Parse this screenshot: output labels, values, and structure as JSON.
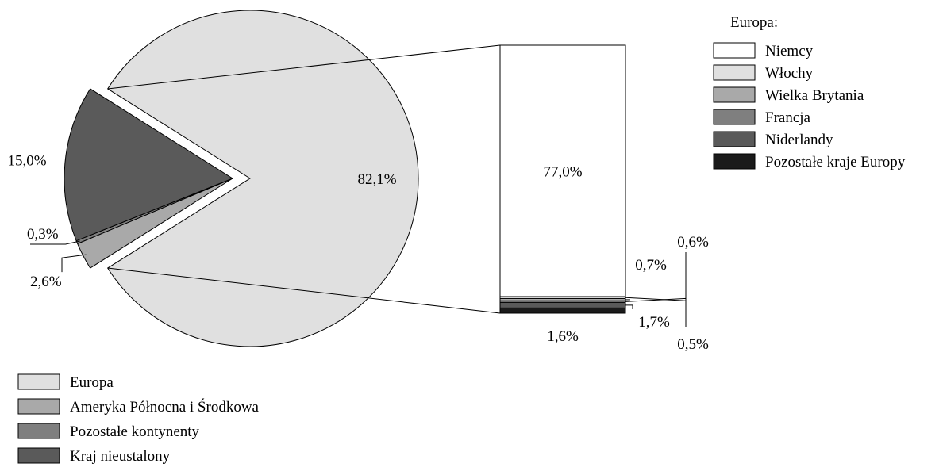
{
  "chart_data": [
    {
      "type": "pie",
      "categories": [
        "Europa",
        "Ameryka Północna i Środkowa",
        "Pozostałe kontynenty",
        "Kraj nieustalony"
      ],
      "values": [
        82.1,
        2.6,
        0.3,
        15.0
      ],
      "value_labels": [
        "82,1%",
        "2,6%",
        "0,3%",
        "15,0%"
      ],
      "colors": [
        "#e0e0e0",
        "#a9a9a9",
        "#7f7f7f",
        "#5a5a5a"
      ],
      "exploded": [
        "Ameryka Północna i Środkowa",
        "Pozostałe kontynenty",
        "Kraj nieustalony"
      ],
      "legend": {
        "position": "bottom-left",
        "items": [
          "Europa",
          "Ameryka Północna i Środkowa",
          "Pozostałe kontynenty",
          "Kraj nieustalony"
        ]
      }
    },
    {
      "type": "bar",
      "stacked": true,
      "breakdown_of": "Europa",
      "categories": [
        "Niemcy",
        "Włochy",
        "Wielka Brytania",
        "Francja",
        "Niderlandy",
        "Pozostałe kraje Europy"
      ],
      "values": [
        77.0,
        0.6,
        0.7,
        0.5,
        1.7,
        1.6
      ],
      "value_labels": [
        "77,0%",
        "0,6%",
        "0,7%",
        "0,5%",
        "1,7%",
        "1,6%"
      ],
      "colors": [
        "#ffffff",
        "#e0e0e0",
        "#a9a9a9",
        "#7f7f7f",
        "#5a5a5a",
        "#1a1a1a"
      ],
      "legend": {
        "title": "Europa:",
        "position": "top-right",
        "items": [
          "Niemcy",
          "Włochy",
          "Wielka Brytania",
          "Francja",
          "Niderlandy",
          "Pozostałe kraje Europy"
        ]
      }
    }
  ]
}
